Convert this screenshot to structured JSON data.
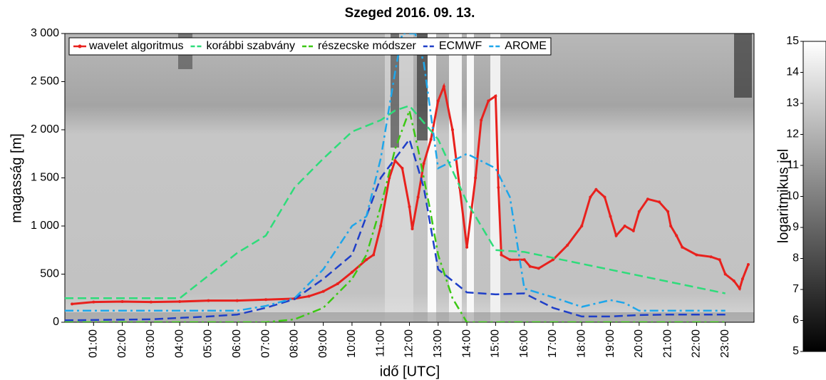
{
  "chart_data": {
    "type": "line",
    "title": "Szeged 2016. 09. 13.",
    "x_label": "idő [UTC]",
    "y_label": "magasság [m]",
    "xlim": [
      0,
      24
    ],
    "ylim": [
      0,
      3000
    ],
    "xticks": [
      {
        "value": 1,
        "label": "01:00"
      },
      {
        "value": 2,
        "label": "02:00"
      },
      {
        "value": 3,
        "label": "03:00"
      },
      {
        "value": 4,
        "label": "04:00"
      },
      {
        "value": 5,
        "label": "05:00"
      },
      {
        "value": 6,
        "label": "06:00"
      },
      {
        "value": 7,
        "label": "07:00"
      },
      {
        "value": 8,
        "label": "08:00"
      },
      {
        "value": 9,
        "label": "09:00"
      },
      {
        "value": 10,
        "label": "10:00"
      },
      {
        "value": 11,
        "label": "11:00"
      },
      {
        "value": 12,
        "label": "12:00"
      },
      {
        "value": 13,
        "label": "13:00"
      },
      {
        "value": 14,
        "label": "14:00"
      },
      {
        "value": 15,
        "label": "15:00"
      },
      {
        "value": 16,
        "label": "16:00"
      },
      {
        "value": 17,
        "label": "17:00"
      },
      {
        "value": 18,
        "label": "18:00"
      },
      {
        "value": 19,
        "label": "19:00"
      },
      {
        "value": 20,
        "label": "20:00"
      },
      {
        "value": 21,
        "label": "21:00"
      },
      {
        "value": 22,
        "label": "22:00"
      },
      {
        "value": 23,
        "label": "23:00"
      }
    ],
    "yticks": [
      0,
      500,
      {
        "value": 1000,
        "label": "1 000"
      },
      {
        "value": 1500,
        "label": "1 500"
      },
      {
        "value": 2000,
        "label": "2 000"
      },
      {
        "value": 2500,
        "label": "2 500"
      },
      {
        "value": 3000,
        "label": "3 000"
      }
    ],
    "legend": "top-left",
    "series": [
      {
        "name": "wavelet algoritmus",
        "color": "#e8211d",
        "dash": "solid",
        "marker": true,
        "x": [
          0.25,
          1,
          2,
          3,
          4,
          5,
          6,
          7,
          8,
          8.5,
          9,
          9.5,
          10,
          10.5,
          10.75,
          11,
          11.3,
          11.5,
          11.75,
          12,
          12.1,
          12.3,
          12.5,
          12.75,
          13,
          13.2,
          13.5,
          13.75,
          14,
          14.3,
          14.5,
          14.75,
          15,
          15.1,
          15.2,
          15.5,
          16,
          16.2,
          16.5,
          17,
          17.5,
          18,
          18.3,
          18.5,
          18.8,
          19,
          19.2,
          19.5,
          19.8,
          20,
          20.3,
          20.7,
          21,
          21.1,
          21.3,
          21.5,
          22,
          22.5,
          22.8,
          23,
          23.3,
          23.5,
          23.6,
          23.8
        ],
        "values": [
          190,
          210,
          215,
          210,
          215,
          225,
          225,
          235,
          245,
          270,
          320,
          400,
          520,
          650,
          700,
          1000,
          1500,
          1680,
          1600,
          1200,
          970,
          1300,
          1650,
          1900,
          2300,
          2450,
          2000,
          1400,
          780,
          1500,
          2100,
          2300,
          2350,
          1400,
          700,
          650,
          650,
          580,
          560,
          650,
          800,
          1000,
          1300,
          1380,
          1300,
          1100,
          900,
          1000,
          950,
          1150,
          1280,
          1250,
          1150,
          1000,
          900,
          780,
          700,
          680,
          650,
          500,
          430,
          350,
          450,
          600
        ]
      },
      {
        "name": "korábbi szabvány",
        "color": "#2edc7a",
        "dash": "dash",
        "marker": false,
        "x": [
          0,
          4,
          6,
          7,
          8,
          9,
          10,
          11,
          11.5,
          12,
          13,
          14,
          15,
          16,
          23
        ],
        "values": [
          250,
          250,
          720,
          900,
          1400,
          1700,
          1980,
          2100,
          2200,
          2250,
          1900,
          1250,
          750,
          730,
          300
        ]
      },
      {
        "name": "részecske módszer",
        "color": "#3cc814",
        "dash": "dashdot",
        "marker": false,
        "x": [
          0,
          7,
          8,
          9,
          10,
          10.5,
          11,
          11.5,
          12,
          12.3,
          12.7,
          13,
          13.5,
          14,
          23
        ],
        "values": [
          0,
          0,
          30,
          150,
          450,
          700,
          1200,
          1800,
          2200,
          1800,
          1200,
          700,
          250,
          0,
          0
        ]
      },
      {
        "name": "ECMWF",
        "color": "#1f3fc8",
        "dash": "dash",
        "marker": false,
        "x": [
          0,
          3,
          5,
          6,
          7,
          8,
          9,
          10,
          11,
          12,
          12.5,
          13,
          14,
          15,
          16,
          17,
          18,
          19,
          20,
          21,
          23
        ],
        "values": [
          20,
          30,
          60,
          80,
          150,
          240,
          450,
          700,
          1500,
          1900,
          1400,
          550,
          310,
          290,
          300,
          150,
          60,
          60,
          75,
          80,
          80
        ]
      },
      {
        "name": "AROME",
        "color": "#1ea6ea",
        "dash": "dashdot",
        "marker": false,
        "x": [
          0,
          6,
          7,
          8,
          9,
          10,
          10.5,
          11,
          11.5,
          11.75,
          12.2,
          12.5,
          13,
          14,
          15,
          15.5,
          16,
          17,
          18,
          19,
          19.5,
          20,
          23
        ],
        "values": [
          120,
          120,
          170,
          250,
          550,
          1000,
          1100,
          1700,
          2600,
          3000,
          3000,
          2700,
          1600,
          1750,
          1600,
          1300,
          350,
          260,
          160,
          230,
          200,
          120,
          120
        ]
      }
    ],
    "colorbar": {
      "label": "logaritmikus jel",
      "lim": [
        5,
        15
      ],
      "ticks": [
        5,
        6,
        7,
        8,
        9,
        10,
        11,
        12,
        13,
        14,
        15
      ]
    }
  }
}
